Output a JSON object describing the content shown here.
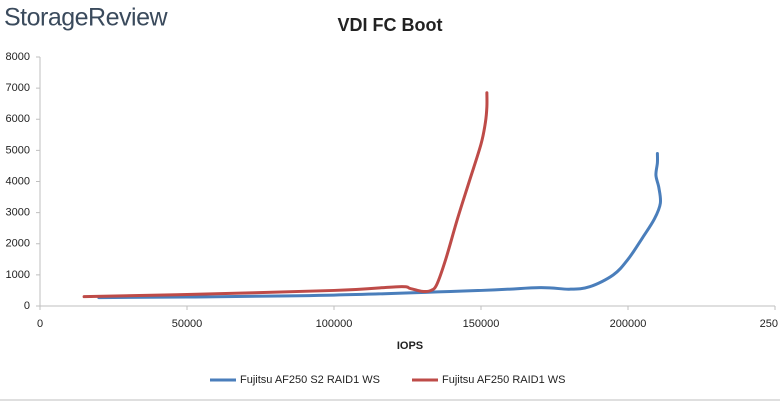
{
  "logo": "StorageReview",
  "chart_data": {
    "type": "line",
    "title": "VDI FC Boot",
    "xlabel": "IOPS",
    "xlim": [
      0,
      250000
    ],
    "xticks": [
      0,
      50000,
      100000,
      150000,
      200000,
      {
        "value": 250000,
        "label": "250"
      }
    ],
    "ylim": [
      0,
      8000
    ],
    "yticks": [
      0,
      1000,
      2000,
      3000,
      4000,
      5000,
      6000,
      7000,
      8000
    ],
    "grid": false,
    "legend": "bottom",
    "series": [
      {
        "name": "Fujitsu AF250 S2 RAID1 WS",
        "color": "#4a7ebb",
        "x": [
          20000,
          50000,
          100000,
          150000,
          170000,
          180000,
          187000,
          195000,
          200000,
          205000,
          209000,
          211000,
          210500,
          209500,
          210000,
          210000
        ],
        "values": [
          270,
          290,
          350,
          500,
          590,
          540,
          620,
          1000,
          1500,
          2200,
          2800,
          3300,
          3800,
          4200,
          4600,
          4900
        ]
      },
      {
        "name": "Fujitsu AF250 RAID1 WS",
        "color": "#be4b48",
        "x": [
          15000,
          50000,
          100000,
          122000,
          126000,
          130000,
          133000,
          135000,
          138000,
          142000,
          146000,
          150000,
          151500,
          152000,
          152000
        ],
        "values": [
          300,
          370,
          500,
          620,
          560,
          470,
          500,
          700,
          1500,
          2800,
          4000,
          5200,
          5900,
          6400,
          6850
        ]
      }
    ]
  }
}
